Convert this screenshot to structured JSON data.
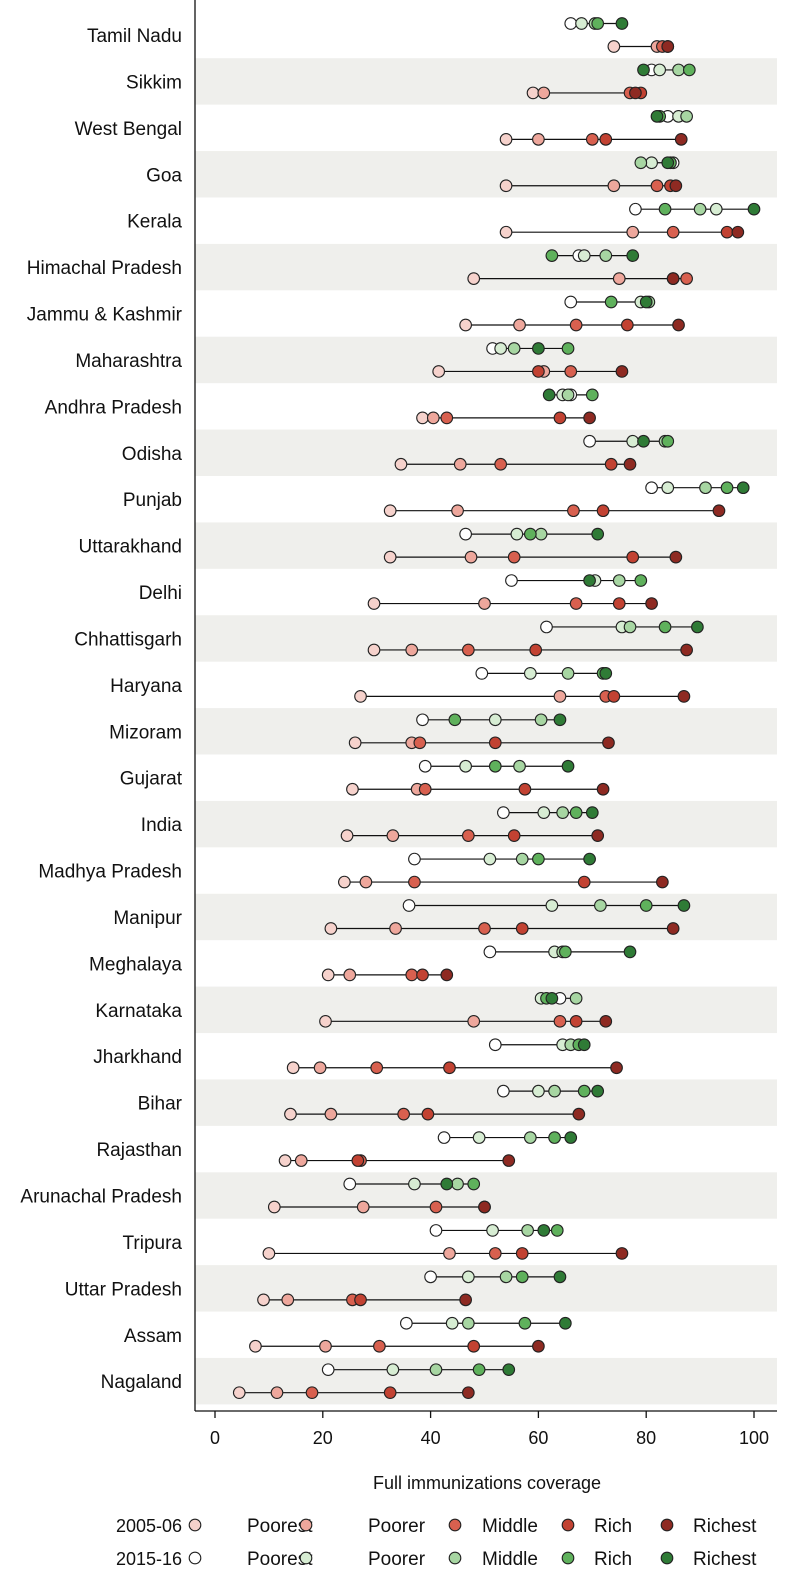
{
  "chart_data": {
    "type": "scatter",
    "subtype": "dot-plot",
    "title": "",
    "xlabel": "Full immunizations coverage",
    "ylabel": "",
    "xlim": [
      -4,
      104
    ],
    "xticks": [
      0,
      20,
      40,
      60,
      80,
      100
    ],
    "grid": false,
    "legend_position": "bottom",
    "quintiles": [
      "Poorest",
      "Poorer",
      "Middle",
      "Rich",
      "Richest"
    ],
    "survey_rounds": [
      {
        "label": "2005-06",
        "colors": [
          "#f6d2cc",
          "#eea79c",
          "#d8604f",
          "#c24232",
          "#8e2a22"
        ]
      },
      {
        "label": "2015-16",
        "colors": [
          "#ffffff",
          "#d7edd3",
          "#a7d6a2",
          "#5fb15c",
          "#2f7b36"
        ]
      }
    ],
    "states": [
      {
        "name": "Tamil Nadu",
        "r2005": [
          74,
          82,
          83,
          84,
          84
        ],
        "r2015": [
          66,
          68,
          70.5,
          71,
          75.5
        ]
      },
      {
        "name": "Sikkim",
        "r2005": [
          59,
          61,
          77,
          79,
          78
        ],
        "r2015": [
          81,
          82.5,
          86,
          88,
          79.5
        ]
      },
      {
        "name": "West Bengal",
        "r2005": [
          54,
          60,
          70,
          72.5,
          86.5
        ],
        "r2015": [
          84,
          86,
          87.5,
          82.5,
          82
        ]
      },
      {
        "name": "Goa",
        "r2005": [
          54,
          74,
          82,
          84.5,
          85.5
        ],
        "r2015": [
          85,
          81,
          79,
          84.5,
          84
        ]
      },
      {
        "name": "Kerala",
        "r2005": [
          54,
          77.5,
          85,
          95,
          97
        ],
        "r2015": [
          78,
          93,
          90,
          83.5,
          100
        ]
      },
      {
        "name": "Himachal Pradesh",
        "r2005": [
          48,
          75,
          87.5,
          85,
          85
        ],
        "r2015": [
          67.5,
          68.5,
          72.5,
          62.5,
          77.5
        ]
      },
      {
        "name": "Jammu & Kashmir",
        "r2005": [
          46.5,
          56.5,
          67,
          76.5,
          86
        ],
        "r2015": [
          66,
          79,
          80.5,
          73.5,
          80
        ]
      },
      {
        "name": "Maharashtra",
        "r2005": [
          41.5,
          61,
          66,
          60,
          75.5
        ],
        "r2015": [
          51.5,
          53,
          55.5,
          65.5,
          60
        ]
      },
      {
        "name": "Andhra Pradesh",
        "r2005": [
          38.5,
          40.5,
          43,
          64,
          69.5
        ],
        "r2015": [
          66,
          64.5,
          65.5,
          70,
          62
        ]
      },
      {
        "name": "Odisha",
        "r2005": [
          34.5,
          45.5,
          53,
          73.5,
          77
        ],
        "r2015": [
          69.5,
          77.5,
          83.5,
          84,
          79.5
        ]
      },
      {
        "name": "Punjab",
        "r2005": [
          32.5,
          45,
          66.5,
          72,
          93.5
        ],
        "r2015": [
          81,
          84,
          91,
          95,
          98
        ]
      },
      {
        "name": "Uttarakhand",
        "r2005": [
          32.5,
          47.5,
          55.5,
          77.5,
          85.5
        ],
        "r2015": [
          46.5,
          56,
          60.5,
          58.5,
          71
        ]
      },
      {
        "name": "Delhi",
        "r2005": [
          29.5,
          50,
          67,
          75,
          81
        ],
        "r2015": [
          55,
          70.5,
          75,
          79,
          69.5
        ]
      },
      {
        "name": "Chhattisgarh",
        "r2005": [
          29.5,
          36.5,
          47,
          59.5,
          87.5
        ],
        "r2015": [
          61.5,
          75.5,
          77,
          83.5,
          89.5
        ]
      },
      {
        "name": "Haryana",
        "r2005": [
          27,
          64,
          72.5,
          74,
          87
        ],
        "r2015": [
          49.5,
          58.5,
          65.5,
          72,
          72.5
        ]
      },
      {
        "name": "Mizoram",
        "r2005": [
          26,
          36.5,
          38,
          52,
          73
        ],
        "r2015": [
          38.5,
          52,
          60.5,
          44.5,
          64
        ]
      },
      {
        "name": "Gujarat",
        "r2005": [
          25.5,
          37.5,
          39,
          57.5,
          72
        ],
        "r2015": [
          39,
          46.5,
          56.5,
          52,
          65.5
        ]
      },
      {
        "name": "India",
        "r2005": [
          24.5,
          33,
          47,
          55.5,
          71
        ],
        "r2015": [
          53.5,
          61,
          64.5,
          67,
          70
        ]
      },
      {
        "name": "Madhya Pradesh",
        "r2005": [
          24,
          28,
          37,
          68.5,
          83
        ],
        "r2015": [
          37,
          51,
          57,
          60,
          69.5
        ]
      },
      {
        "name": "Manipur",
        "r2005": [
          21.5,
          33.5,
          50,
          57,
          85
        ],
        "r2015": [
          36,
          62.5,
          71.5,
          80,
          87
        ]
      },
      {
        "name": "Meghalaya",
        "r2005": [
          21,
          25,
          36.5,
          38.5,
          43
        ],
        "r2015": [
          51,
          63,
          64.5,
          65,
          77
        ]
      },
      {
        "name": "Karnataka",
        "r2005": [
          20.5,
          48,
          64,
          67,
          72.5
        ],
        "r2015": [
          64,
          60.5,
          67,
          61.5,
          62.5
        ]
      },
      {
        "name": "Jharkhand",
        "r2005": [
          14.5,
          19.5,
          30,
          43.5,
          74.5
        ],
        "r2015": [
          52,
          64.5,
          66,
          67.5,
          68.5
        ]
      },
      {
        "name": "Bihar",
        "r2005": [
          14,
          21.5,
          35,
          39.5,
          67.5
        ],
        "r2015": [
          53.5,
          60,
          63,
          68.5,
          71
        ]
      },
      {
        "name": "Rajasthan",
        "r2005": [
          13,
          16,
          27,
          26.5,
          54.5
        ],
        "r2015": [
          42.5,
          49,
          58.5,
          63,
          66
        ]
      },
      {
        "name": "Arunachal Pradesh",
        "r2005": [
          11,
          27.5,
          41,
          50,
          50
        ],
        "r2015": [
          25,
          37,
          45,
          48,
          43
        ]
      },
      {
        "name": "Tripura",
        "r2005": [
          10,
          43.5,
          52,
          57,
          75.5
        ],
        "r2015": [
          41,
          51.5,
          58,
          63.5,
          61
        ]
      },
      {
        "name": "Uttar Pradesh",
        "r2005": [
          9,
          13.5,
          25.5,
          27,
          46.5
        ],
        "r2015": [
          40,
          47,
          54,
          57,
          64
        ]
      },
      {
        "name": "Assam",
        "r2005": [
          7.5,
          20.5,
          30.5,
          48,
          60
        ],
        "r2015": [
          35.5,
          44,
          47,
          57.5,
          65
        ]
      },
      {
        "name": "Nagaland",
        "r2005": [
          4.5,
          11.5,
          18,
          32.5,
          47
        ],
        "r2015": [
          21,
          33,
          41,
          49,
          54.5
        ]
      }
    ]
  }
}
